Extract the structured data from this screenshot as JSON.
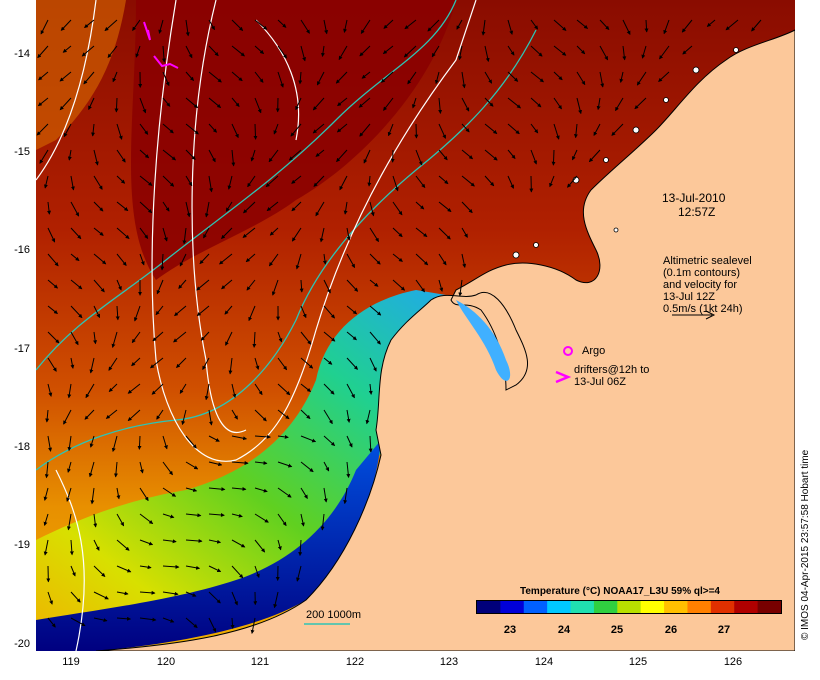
{
  "map": {
    "x_ticks": [
      "119",
      "120",
      "121",
      "122",
      "123",
      "124",
      "125",
      "126"
    ],
    "y_ticks": [
      "-14",
      "-15",
      "-16",
      "-17",
      "-18",
      "-19",
      "-20"
    ],
    "lon_range": [
      118.6,
      126.7
    ],
    "lat_range": [
      -20.08,
      -13.5
    ]
  },
  "annotations": {
    "date": "13-Jul-2010",
    "time": "12:57Z",
    "altimetry_lines": [
      "Altimetric sealevel",
      "(0.1m contours)",
      "and velocity for",
      "13-Jul 12Z",
      "0.5m/s (1kt 24h)"
    ],
    "argo_label": "Argo",
    "drifter_lines": [
      "drifters@12h to",
      "13-Jul 06Z"
    ],
    "depth_legend": "200  1000m"
  },
  "colorbar": {
    "title": "Temperature (°C) NOAA17_L3U 59% ql>=4",
    "ticks": [
      "23",
      "24",
      "25",
      "26",
      "27"
    ],
    "range": [
      22.3,
      27.9
    ],
    "colors": [
      "#00007a",
      "#0000d8",
      "#0060ff",
      "#00c8ff",
      "#20e0b0",
      "#30d040",
      "#b8e000",
      "#ffff00",
      "#ffc000",
      "#ff8000",
      "#e03000",
      "#b00000",
      "#780000"
    ]
  },
  "credit": "© IMOS 04-Apr-2015 23:57:58 Hobart time",
  "colors": {
    "land": "#fcc89a",
    "coast": "#000000",
    "bathymetry": "#2ec4b4",
    "sealevel_contours": "#ffffff",
    "drifter": "#ff00ff",
    "warm_sst": "#a01200",
    "cool_sst": "#000088"
  }
}
